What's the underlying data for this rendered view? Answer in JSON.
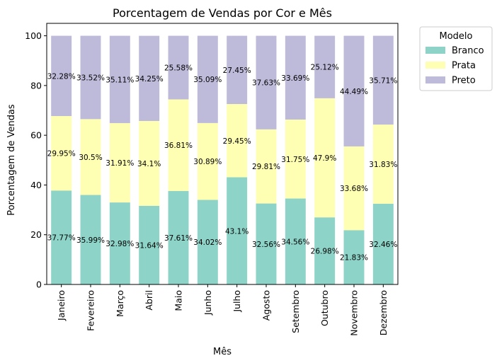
{
  "chart_data": {
    "type": "bar",
    "stacked": true,
    "title": "Porcentagem de Vendas por Cor e Mês",
    "xlabel": "Mês",
    "ylabel": "Porcentagem de Vendas",
    "ylim": [
      0,
      105
    ],
    "yticks": [
      0,
      20,
      40,
      60,
      80,
      100
    ],
    "categories": [
      "Janeiro",
      "Fevereiro",
      "Março",
      "Abril",
      "Maio",
      "Junho",
      "Julho",
      "Agosto",
      "Setembro",
      "Outubro",
      "Novembro",
      "Dezembro"
    ],
    "series": [
      {
        "name": "Branco",
        "color": "#8dd3c7",
        "values": [
          37.77,
          35.99,
          32.98,
          31.64,
          37.61,
          34.02,
          43.1,
          32.56,
          34.56,
          26.98,
          21.83,
          32.46
        ],
        "labels": [
          "37.77%",
          "35.99%",
          "32.98%",
          "31.64%",
          "37.61%",
          "34.02%",
          "43.1%",
          "32.56%",
          "34.56%",
          "26.98%",
          "21.83%",
          "32.46%"
        ]
      },
      {
        "name": "Prata",
        "color": "#ffffb3",
        "values": [
          29.95,
          30.5,
          31.91,
          34.1,
          36.81,
          30.89,
          29.45,
          29.81,
          31.75,
          47.9,
          33.68,
          31.83
        ],
        "labels": [
          "29.95%",
          "30.5%",
          "31.91%",
          "34.1%",
          "36.81%",
          "30.89%",
          "29.45%",
          "29.81%",
          "31.75%",
          "47.9%",
          "33.68%",
          "31.83%"
        ]
      },
      {
        "name": "Preto",
        "color": "#bebada",
        "values": [
          32.28,
          33.52,
          35.11,
          34.25,
          25.58,
          35.09,
          27.45,
          37.63,
          33.69,
          25.12,
          44.49,
          35.71
        ],
        "labels": [
          "32.28%",
          "33.52%",
          "35.11%",
          "34.25%",
          "25.58%",
          "35.09%",
          "27.45%",
          "37.63%",
          "33.69%",
          "25.12%",
          "44.49%",
          "35.71%"
        ]
      }
    ],
    "legend": {
      "title": "Modelo",
      "placement": "outside-upper-right"
    },
    "grid": false
  }
}
